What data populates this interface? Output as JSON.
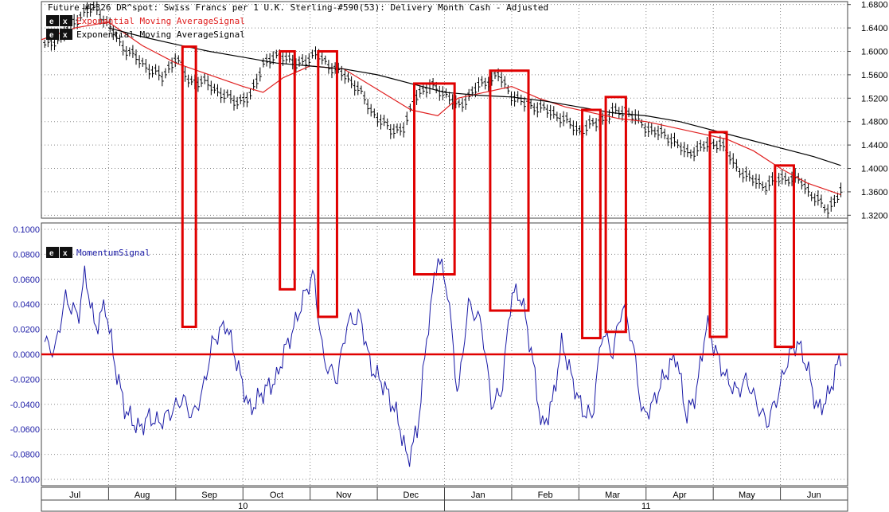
{
  "header": {
    "title": "Future #2326 DR^spot: Swiss Francs per 1 U.K. Sterling-#590(53): Delivery Month Cash -  Adjusted"
  },
  "price_panel": {
    "legend": [
      {
        "label": "Exponential Moving AverageSignal",
        "color": "#e02020"
      },
      {
        "label": "Exponential Moving AverageSignal",
        "color": "#000000"
      }
    ],
    "ticks": [
      "1.6800",
      "1.6400",
      "1.6000",
      "1.5600",
      "1.5200",
      "1.4800",
      "1.4400",
      "1.4000",
      "1.3600",
      "1.3200"
    ]
  },
  "momentum_panel": {
    "legend": {
      "label": "MomentumSignal",
      "color": "#1a1aa6"
    },
    "ticks": [
      "0.1000",
      "0.0800",
      "0.0600",
      "0.0400",
      "0.0200",
      "0.0000",
      "-0.0200",
      "-0.0400",
      "-0.0600",
      "-0.0800",
      "-0.1000"
    ]
  },
  "buttons": {
    "expand": "e",
    "close": "x"
  },
  "x_axis": {
    "months": [
      "Jul",
      "Aug",
      "Sep",
      "Oct",
      "Nov",
      "Dec",
      "Jan",
      "Feb",
      "Mar",
      "Apr",
      "May",
      "Jun"
    ],
    "years": [
      "10",
      "11"
    ]
  },
  "colors": {
    "price_bars": "#000000",
    "ema_fast": "#e02020",
    "ema_slow": "#000000",
    "momentum": "#1a1aa6",
    "zero_line": "#e00000",
    "highlight": "#e00000"
  },
  "chart_data": [
    {
      "type": "line",
      "title": "Future #2326 DR^spot: Swiss Francs per 1 U.K. Sterling-#590(53): Delivery Month Cash -  Adjusted",
      "x_categories": [
        "Jul",
        "Aug",
        "Sep",
        "Oct",
        "Nov",
        "Dec",
        "Jan",
        "Feb",
        "Mar",
        "Apr",
        "May",
        "Jun"
      ],
      "ylim": [
        1.315,
        1.685
      ],
      "x_range": [
        0,
        12
      ],
      "series": [
        {
          "kind": "price",
          "x": [
            0.05,
            0.3,
            0.6,
            0.8,
            1.0,
            1.2,
            1.5,
            1.8,
            2.0,
            2.2,
            2.5,
            2.7,
            2.9,
            3.1,
            3.3,
            3.6,
            3.8,
            3.9,
            4.1,
            4.3,
            4.5,
            4.7,
            4.9,
            5.2,
            5.4,
            5.6,
            5.8,
            6.0,
            6.2,
            6.5,
            6.8,
            7.0,
            7.2,
            7.4,
            7.7,
            8.0,
            8.3,
            8.5,
            8.7,
            9.0,
            9.2,
            9.4,
            9.6,
            9.9,
            10.1,
            10.3,
            10.5,
            10.8,
            11.0,
            11.3,
            11.5,
            11.7,
            11.9
          ],
          "values": [
            1.61,
            1.625,
            1.665,
            1.675,
            1.645,
            1.61,
            1.58,
            1.555,
            1.59,
            1.55,
            1.545,
            1.525,
            1.515,
            1.52,
            1.58,
            1.595,
            1.575,
            1.585,
            1.595,
            1.575,
            1.56,
            1.54,
            1.5,
            1.465,
            1.47,
            1.53,
            1.54,
            1.53,
            1.505,
            1.54,
            1.56,
            1.525,
            1.51,
            1.505,
            1.49,
            1.465,
            1.48,
            1.495,
            1.5,
            1.47,
            1.46,
            1.45,
            1.425,
            1.44,
            1.445,
            1.41,
            1.385,
            1.37,
            1.385,
            1.38,
            1.35,
            1.33,
            1.36
          ]
        },
        {
          "kind": "ema_fast",
          "name": "Exponential Moving AverageSignal",
          "x": [
            0,
            0.5,
            1.0,
            1.5,
            2.0,
            2.5,
            3.0,
            3.3,
            3.6,
            4.0,
            4.5,
            5.0,
            5.5,
            5.9,
            6.2,
            6.6,
            7.0,
            7.4,
            7.8,
            8.2,
            8.6,
            9.0,
            9.4,
            9.8,
            10.2,
            10.6,
            11.0,
            11.4,
            11.9
          ],
          "values": [
            1.62,
            1.64,
            1.65,
            1.61,
            1.58,
            1.56,
            1.54,
            1.53,
            1.555,
            1.575,
            1.57,
            1.535,
            1.5,
            1.49,
            1.52,
            1.53,
            1.54,
            1.52,
            1.505,
            1.495,
            1.485,
            1.48,
            1.47,
            1.46,
            1.45,
            1.43,
            1.4,
            1.375,
            1.355
          ]
        },
        {
          "kind": "ema_slow",
          "name": "Exponential Moving AverageSignal",
          "x": [
            1.0,
            1.5,
            2.0,
            2.5,
            3.0,
            3.5,
            4.0,
            4.5,
            5.0,
            5.5,
            6.0,
            6.5,
            7.0,
            7.5,
            8.0,
            8.5,
            9.0,
            9.5,
            10.0,
            10.5,
            11.0,
            11.5,
            11.9
          ],
          "values": [
            1.64,
            1.625,
            1.612,
            1.6,
            1.59,
            1.58,
            1.575,
            1.57,
            1.56,
            1.545,
            1.53,
            1.525,
            1.522,
            1.515,
            1.505,
            1.495,
            1.49,
            1.48,
            1.465,
            1.45,
            1.435,
            1.42,
            1.405
          ]
        }
      ]
    },
    {
      "type": "line",
      "x_categories": [
        "Jul",
        "Aug",
        "Sep",
        "Oct",
        "Nov",
        "Dec",
        "Jan",
        "Feb",
        "Mar",
        "Apr",
        "May",
        "Jun"
      ],
      "ylim": [
        -0.1,
        0.1
      ],
      "x_range": [
        0,
        12
      ],
      "series": [
        {
          "name": "MomentumSignal",
          "x": [
            0.05,
            0.2,
            0.35,
            0.55,
            0.65,
            0.8,
            0.95,
            1.1,
            1.25,
            1.45,
            1.6,
            1.75,
            1.95,
            2.1,
            2.25,
            2.4,
            2.55,
            2.75,
            2.9,
            3.1,
            3.3,
            3.5,
            3.6,
            3.75,
            3.9,
            4.05,
            4.2,
            4.4,
            4.55,
            4.75,
            4.9,
            5.1,
            5.3,
            5.45,
            5.6,
            5.75,
            5.9,
            6.05,
            6.2,
            6.35,
            6.55,
            6.7,
            6.85,
            7.0,
            7.15,
            7.3,
            7.45,
            7.6,
            7.75,
            7.9,
            8.05,
            8.2,
            8.35,
            8.5,
            8.65,
            8.8,
            8.95,
            9.1,
            9.25,
            9.45,
            9.6,
            9.75,
            9.9,
            10.05,
            10.2,
            10.35,
            10.5,
            10.65,
            10.8,
            10.95,
            11.1,
            11.25,
            11.4,
            11.55,
            11.7,
            11.9
          ],
          "values": [
            0.01,
            0.002,
            0.045,
            0.03,
            0.065,
            0.02,
            0.04,
            -0.01,
            -0.045,
            -0.06,
            -0.05,
            -0.055,
            -0.045,
            -0.035,
            -0.05,
            -0.03,
            0.01,
            0.025,
            -0.005,
            -0.045,
            -0.03,
            -0.02,
            0.0,
            0.02,
            0.045,
            0.065,
            -0.005,
            -0.02,
            0.025,
            0.03,
            -0.01,
            -0.025,
            -0.05,
            -0.085,
            -0.06,
            0.02,
            0.08,
            0.05,
            -0.035,
            0.04,
            0.025,
            -0.04,
            -0.03,
            0.05,
            0.045,
            0.0,
            -0.06,
            -0.04,
            0.01,
            -0.02,
            -0.045,
            -0.05,
            0.02,
            0.0,
            0.04,
            0.01,
            -0.05,
            -0.04,
            -0.02,
            0.0,
            -0.05,
            -0.03,
            0.025,
            0.0,
            -0.02,
            -0.03,
            -0.02,
            -0.04,
            -0.055,
            -0.035,
            -0.005,
            0.01,
            -0.01,
            -0.045,
            -0.035,
            0.0
          ]
        }
      ]
    }
  ],
  "highlights": [
    {
      "x0": 2.1,
      "x1": 2.3,
      "price_top": 1.608,
      "mom_bottom": 0.022
    },
    {
      "x0": 3.55,
      "x1": 3.77,
      "price_top": 1.6,
      "mom_bottom": 0.052
    },
    {
      "x0": 4.12,
      "x1": 4.4,
      "price_top": 1.6,
      "mom_bottom": 0.03
    },
    {
      "x0": 5.55,
      "x1": 6.15,
      "price_top": 1.545,
      "mom_bottom": 0.064
    },
    {
      "x0": 6.68,
      "x1": 7.25,
      "price_top": 1.567,
      "mom_bottom": 0.035
    },
    {
      "x0": 8.05,
      "x1": 8.32,
      "price_top": 1.5,
      "mom_bottom": 0.013
    },
    {
      "x0": 8.4,
      "x1": 8.7,
      "price_top": 1.522,
      "mom_bottom": 0.018
    },
    {
      "x0": 9.95,
      "x1": 10.2,
      "price_top": 1.462,
      "mom_bottom": 0.014
    },
    {
      "x0": 10.92,
      "x1": 11.2,
      "price_top": 1.405,
      "mom_bottom": 0.006
    }
  ]
}
